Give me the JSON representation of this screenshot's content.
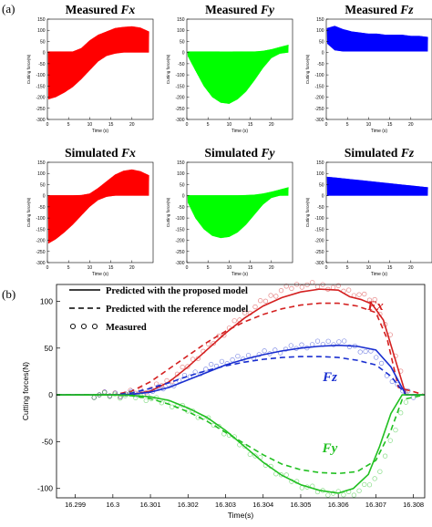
{
  "figure": {
    "panel_a_label": "(a)",
    "panel_b_label": "(b)"
  },
  "chart_data": [
    {
      "type": "area",
      "panel": "a",
      "title": "Measured Fx",
      "title_prefix": "Measured",
      "title_var": "Fx",
      "ylabel": "Cutting force(N)",
      "xlabel": "Time (s)",
      "xlim": [
        0,
        25
      ],
      "ylim": [
        -300,
        150
      ],
      "xticks": [
        0,
        5,
        10,
        15,
        20
      ],
      "yticks": [
        -300,
        -250,
        -200,
        -150,
        -100,
        -50,
        0,
        50,
        100,
        150
      ],
      "color": "#ff0000",
      "x": [
        0.2,
        2,
        4,
        6,
        8,
        10,
        12,
        14,
        16,
        18,
        20,
        22,
        24
      ],
      "upper": [
        5,
        5,
        5,
        5,
        20,
        55,
        80,
        95,
        110,
        115,
        118,
        112,
        95
      ],
      "lower": [
        -210,
        -200,
        -180,
        -155,
        -120,
        -80,
        -40,
        -15,
        -5,
        0,
        0,
        0,
        0
      ]
    },
    {
      "type": "area",
      "panel": "a",
      "title": "Measured Fy",
      "title_prefix": "Measured",
      "title_var": "Fy",
      "ylabel": "Cutting force(N)",
      "xlabel": "Time (s)",
      "xlim": [
        0,
        25
      ],
      "ylim": [
        -300,
        150
      ],
      "xticks": [
        0,
        5,
        10,
        15,
        20
      ],
      "yticks": [
        -300,
        -250,
        -200,
        -150,
        -100,
        -50,
        0,
        50,
        100,
        150
      ],
      "color": "#00ff00",
      "x": [
        0.2,
        2,
        4,
        6,
        8,
        10,
        12,
        14,
        16,
        18,
        20,
        22,
        24
      ],
      "upper": [
        5,
        5,
        5,
        5,
        5,
        5,
        5,
        5,
        5,
        8,
        15,
        25,
        35
      ],
      "lower": [
        -15,
        -80,
        -150,
        -200,
        -225,
        -230,
        -210,
        -175,
        -125,
        -70,
        -25,
        -5,
        0
      ]
    },
    {
      "type": "area",
      "panel": "a",
      "title": "Measured Fz",
      "title_prefix": "Measured",
      "title_var": "Fz",
      "ylabel": "Cutting force(N)",
      "xlabel": "Time (s)",
      "xlim": [
        0,
        25
      ],
      "ylim": [
        -300,
        150
      ],
      "xticks": [
        0,
        5,
        10,
        15,
        20
      ],
      "yticks": [
        -300,
        -250,
        -200,
        -150,
        -100,
        -50,
        0,
        50,
        100,
        150
      ],
      "color": "#0000ff",
      "x": [
        0.2,
        2,
        4,
        6,
        8,
        10,
        12,
        14,
        16,
        18,
        20,
        22,
        24
      ],
      "upper": [
        110,
        120,
        105,
        95,
        90,
        85,
        85,
        80,
        80,
        80,
        75,
        75,
        70
      ],
      "lower": [
        40,
        10,
        5,
        5,
        5,
        5,
        5,
        5,
        5,
        5,
        5,
        5,
        5
      ]
    },
    {
      "type": "area",
      "panel": "a",
      "title": "Simulated Fx",
      "title_prefix": "Simulated",
      "title_var": "Fx",
      "ylabel": "Cutting force(N)",
      "xlabel": "Time (s)",
      "xlim": [
        0,
        25
      ],
      "ylim": [
        -300,
        150
      ],
      "xticks": [
        0,
        5,
        10,
        15,
        20
      ],
      "yticks": [
        -300,
        -250,
        -200,
        -150,
        -100,
        -50,
        0,
        50,
        100,
        150
      ],
      "color": "#ff0000",
      "x": [
        0.2,
        2,
        4,
        6,
        8,
        10,
        12,
        14,
        16,
        18,
        20,
        22,
        24
      ],
      "upper": [
        2,
        2,
        2,
        2,
        3,
        10,
        35,
        65,
        95,
        112,
        118,
        110,
        92
      ],
      "lower": [
        -215,
        -195,
        -165,
        -130,
        -90,
        -50,
        -20,
        -5,
        0,
        0,
        0,
        0,
        0
      ]
    },
    {
      "type": "area",
      "panel": "a",
      "title": "Simulated Fy",
      "title_prefix": "Simulated",
      "title_var": "Fy",
      "ylabel": "Cutting force(N)",
      "xlabel": "Time (s)",
      "xlim": [
        0,
        25
      ],
      "ylim": [
        -300,
        150
      ],
      "xticks": [
        0,
        5,
        10,
        15,
        20
      ],
      "yticks": [
        -300,
        -250,
        -200,
        -150,
        -100,
        -50,
        0,
        50,
        100,
        150
      ],
      "color": "#00ff00",
      "x": [
        0.2,
        2,
        4,
        6,
        8,
        10,
        12,
        14,
        16,
        18,
        20,
        22,
        24
      ],
      "upper": [
        2,
        2,
        2,
        2,
        2,
        2,
        2,
        3,
        5,
        10,
        18,
        28,
        38
      ],
      "lower": [
        -30,
        -100,
        -150,
        -180,
        -190,
        -185,
        -165,
        -130,
        -85,
        -40,
        -10,
        0,
        0
      ]
    },
    {
      "type": "area",
      "panel": "a",
      "title": "Simulated Fz",
      "title_prefix": "Simulated",
      "title_var": "Fz",
      "ylabel": "Cutting force(N)",
      "xlabel": "Time (s)",
      "xlim": [
        0,
        25
      ],
      "ylim": [
        -300,
        150
      ],
      "xticks": [
        0,
        5,
        10,
        15,
        20
      ],
      "yticks": [
        -300,
        -250,
        -200,
        -150,
        -100,
        -50,
        0,
        50,
        100,
        150
      ],
      "color": "#0000ff",
      "x": [
        0.2,
        2,
        4,
        6,
        8,
        10,
        12,
        14,
        16,
        18,
        20,
        22,
        24
      ],
      "upper": [
        85,
        82,
        78,
        74,
        70,
        66,
        62,
        58,
        54,
        50,
        46,
        42,
        38
      ],
      "lower": [
        0,
        0,
        0,
        0,
        0,
        0,
        0,
        0,
        0,
        0,
        0,
        0,
        0
      ]
    },
    {
      "type": "line",
      "panel": "b",
      "ylabel": "Cutting forces(N)",
      "xlabel": "Time(s)",
      "xlim": [
        16.2985,
        16.3083
      ],
      "ylim": [
        -110,
        118
      ],
      "xticks": [
        16.299,
        16.3,
        16.301,
        16.302,
        16.303,
        16.304,
        16.305,
        16.306,
        16.307,
        16.308
      ],
      "xtick_labels": [
        "16.299",
        "16.3",
        "16.301",
        "16.302",
        "16.303",
        "16.304",
        "16.305",
        "16.306",
        "16.307",
        "16.308"
      ],
      "yticks": [
        -100,
        -50,
        0,
        50,
        100
      ],
      "legend": {
        "proposed": "Predicted with the proposed model",
        "reference": "Predicted with the reference model",
        "measured": "Measured"
      },
      "series_labels": [
        {
          "name": "Fx",
          "color": "#d42020"
        },
        {
          "name": "Fz",
          "color": "#1a2fd0"
        },
        {
          "name": "Fy",
          "color": "#22c022"
        }
      ],
      "series": [
        {
          "name": "Fx",
          "style": "proposed",
          "color": "#d42020",
          "x": [
            16.2985,
            16.3,
            16.3005,
            16.301,
            16.3015,
            16.302,
            16.3025,
            16.303,
            16.3035,
            16.304,
            16.3045,
            16.305,
            16.3055,
            16.306,
            16.3063,
            16.3066,
            16.3069,
            16.3072,
            16.3075,
            16.3078,
            16.3083
          ],
          "y": [
            0,
            0,
            0.5,
            4,
            14,
            30,
            48,
            66,
            82,
            95,
            104,
            110,
            113,
            112,
            105,
            102,
            97,
            80,
            40,
            0,
            0
          ]
        },
        {
          "name": "Fx",
          "style": "reference",
          "color": "#d42020",
          "x": [
            16.2985,
            16.3,
            16.3005,
            16.301,
            16.3015,
            16.302,
            16.3025,
            16.303,
            16.3035,
            16.304,
            16.3045,
            16.305,
            16.3055,
            16.306,
            16.3065,
            16.307,
            16.3073,
            16.3076,
            16.3083
          ],
          "y": [
            0,
            0,
            4,
            14,
            28,
            42,
            56,
            68,
            78,
            86,
            92,
            96,
            98,
            98,
            95,
            88,
            60,
            8,
            0
          ]
        },
        {
          "name": "Fx",
          "style": "measured",
          "color": "#d42020",
          "x": [
            16.2995,
            16.3003,
            16.301,
            16.3015,
            16.302,
            16.3025,
            16.303,
            16.3035,
            16.304,
            16.3045,
            16.305,
            16.3055,
            16.306,
            16.3065,
            16.307,
            16.3074,
            16.3078
          ],
          "y": [
            0,
            1,
            6,
            15,
            32,
            50,
            68,
            86,
            100,
            112,
            118,
            117,
            114,
            108,
            100,
            60,
            5
          ]
        },
        {
          "name": "Fz",
          "style": "proposed",
          "color": "#1a2fd0",
          "x": [
            16.2985,
            16.3,
            16.3005,
            16.301,
            16.3015,
            16.302,
            16.3025,
            16.303,
            16.3035,
            16.304,
            16.3045,
            16.305,
            16.3055,
            16.306,
            16.3065,
            16.307,
            16.3074,
            16.3078,
            16.3083
          ],
          "y": [
            0,
            0,
            0.5,
            3,
            8,
            16,
            24,
            32,
            38,
            43,
            47,
            50,
            52,
            53,
            52,
            48,
            30,
            0,
            0
          ]
        },
        {
          "name": "Fz",
          "style": "reference",
          "color": "#1a2fd0",
          "x": [
            16.2985,
            16.3,
            16.3005,
            16.301,
            16.3015,
            16.302,
            16.3025,
            16.303,
            16.3035,
            16.304,
            16.3045,
            16.305,
            16.3055,
            16.306,
            16.3065,
            16.307,
            16.3074,
            16.3078,
            16.3083
          ],
          "y": [
            0,
            0,
            2,
            7,
            13,
            20,
            26,
            31,
            35,
            38,
            40,
            41,
            41,
            40,
            37,
            32,
            20,
            0,
            0
          ]
        },
        {
          "name": "Fz",
          "style": "measured",
          "color": "#1a2fd0",
          "x": [
            16.2995,
            16.3005,
            16.301,
            16.3015,
            16.302,
            16.3025,
            16.303,
            16.3035,
            16.304,
            16.3045,
            16.305,
            16.3055,
            16.306,
            16.3065,
            16.307,
            16.3075,
            16.308
          ],
          "y": [
            0,
            1,
            3,
            10,
            20,
            28,
            36,
            40,
            44,
            48,
            52,
            55,
            57,
            50,
            42,
            10,
            0
          ]
        },
        {
          "name": "Fy",
          "style": "proposed",
          "color": "#22c022",
          "x": [
            16.2985,
            16.3,
            16.3005,
            16.301,
            16.3015,
            16.302,
            16.3025,
            16.303,
            16.3035,
            16.304,
            16.3045,
            16.305,
            16.3055,
            16.306,
            16.3064,
            16.3068,
            16.3071,
            16.3074,
            16.3077,
            16.3083
          ],
          "y": [
            0,
            0,
            -0.5,
            -2,
            -6,
            -14,
            -24,
            -38,
            -55,
            -72,
            -86,
            -96,
            -102,
            -105,
            -100,
            -85,
            -55,
            -20,
            0,
            0
          ]
        },
        {
          "name": "Fy",
          "style": "reference",
          "color": "#22c022",
          "x": [
            16.2985,
            16.3,
            16.3005,
            16.301,
            16.3015,
            16.302,
            16.3025,
            16.303,
            16.3035,
            16.304,
            16.3045,
            16.305,
            16.3055,
            16.306,
            16.3065,
            16.307,
            16.3074,
            16.3077,
            16.3083
          ],
          "y": [
            0,
            0,
            -1,
            -4,
            -10,
            -18,
            -28,
            -40,
            -52,
            -64,
            -74,
            -80,
            -83,
            -84,
            -82,
            -70,
            -38,
            -5,
            0
          ]
        },
        {
          "name": "Fy",
          "style": "measured",
          "color": "#22c022",
          "x": [
            16.2995,
            16.3005,
            16.301,
            16.3015,
            16.302,
            16.3025,
            16.303,
            16.3035,
            16.304,
            16.3045,
            16.305,
            16.3055,
            16.306,
            16.3065,
            16.307,
            16.3074,
            16.3078
          ],
          "y": [
            0,
            -1,
            -4,
            -9,
            -16,
            -26,
            -40,
            -56,
            -72,
            -86,
            -96,
            -103,
            -106,
            -104,
            -90,
            -50,
            -5
          ]
        }
      ]
    }
  ]
}
